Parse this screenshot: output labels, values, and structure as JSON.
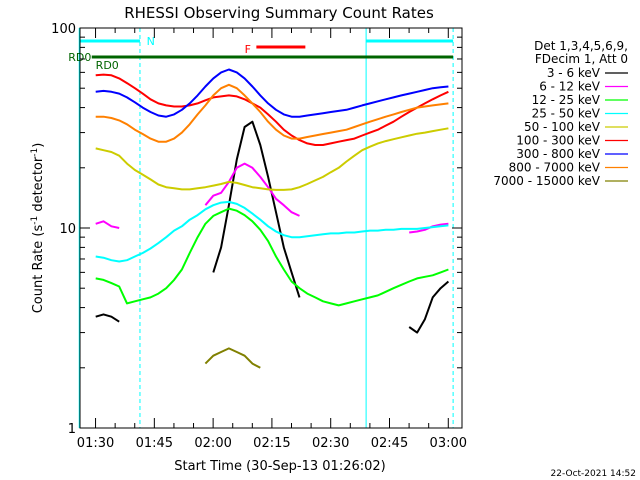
{
  "chart_data": {
    "type": "line",
    "title": "RHESSI Observing Summary Count Rates",
    "xlabel": "Start Time (30-Sep-13 01:26:02)",
    "ylabel": "Count Rate (s",
    "ylabel_sup": "-1",
    "ylabel_tail": " detector",
    "ylabel_sup2": "-1",
    "ylabel_end": ")",
    "y_scale": "log",
    "xlim": [
      "01:26:02",
      "03:03:30"
    ],
    "ylim": [
      1,
      100
    ],
    "x_ticks": [
      "01:30",
      "01:45",
      "02:00",
      "02:15",
      "02:30",
      "02:45",
      "03:00"
    ],
    "y_ticks": [
      "1",
      "10",
      "100"
    ],
    "legend_header": [
      "Det 1,3,4,5,6,9,",
      "FDecim 1, Att 0"
    ],
    "x_sample_minutes": [
      0,
      4,
      6,
      8,
      10,
      12,
      14,
      16,
      18,
      20,
      22,
      24,
      26,
      28,
      30,
      32,
      34,
      36,
      38,
      40,
      42,
      44,
      46,
      48,
      50,
      52,
      54,
      56,
      58,
      60,
      62,
      64,
      66,
      68,
      70,
      72,
      74,
      76,
      78,
      80,
      82,
      84,
      86,
      88,
      90,
      92,
      94
    ],
    "series": [
      {
        "name": "3 - 6 keV",
        "color": "#000000",
        "values": [
          null,
          3.6,
          3.7,
          3.6,
          3.4,
          null,
          null,
          null,
          null,
          null,
          null,
          null,
          null,
          null,
          null,
          null,
          6,
          8,
          13,
          22,
          32,
          34,
          26,
          18,
          12,
          8,
          6,
          4.5,
          null,
          null,
          null,
          null,
          null,
          null,
          null,
          null,
          null,
          null,
          null,
          null,
          null,
          3.2,
          3.0,
          3.5,
          4.5,
          5.0,
          5.4
        ]
      },
      {
        "name": "6 - 12 keV",
        "color": "#ff00ff",
        "values": [
          null,
          10.5,
          10.8,
          10.2,
          10,
          null,
          null,
          null,
          null,
          null,
          null,
          null,
          null,
          null,
          null,
          13,
          14.5,
          15,
          17,
          20,
          21,
          20,
          18,
          16,
          14,
          13,
          12,
          11.5,
          null,
          null,
          null,
          null,
          null,
          null,
          null,
          null,
          null,
          null,
          null,
          null,
          null,
          9.5,
          9.6,
          9.8,
          10.2,
          10.4,
          10.5
        ]
      },
      {
        "name": "12 - 25 keV",
        "color": "#00ff00",
        "values": [
          null,
          5.6,
          5.5,
          5.3,
          5.1,
          4.2,
          4.3,
          4.4,
          4.5,
          4.7,
          5,
          5.5,
          6.2,
          7.5,
          9,
          10.5,
          11.5,
          12,
          12.5,
          12.2,
          11.6,
          10.8,
          9.8,
          8.6,
          7.2,
          6.2,
          5.4,
          5.0,
          4.7,
          4.5,
          4.3,
          4.2,
          4.1,
          4.2,
          4.3,
          4.4,
          4.5,
          4.6,
          4.8,
          5.0,
          5.2,
          5.4,
          5.6,
          5.7,
          5.8,
          6.0,
          6.2
        ]
      },
      {
        "name": "25 - 50 keV",
        "color": "#00ffff",
        "values": [
          null,
          7.2,
          7.1,
          6.9,
          6.8,
          6.9,
          7.2,
          7.5,
          7.9,
          8.4,
          9,
          9.7,
          10.2,
          11,
          11.6,
          12.4,
          13,
          13.4,
          13.5,
          13.2,
          12.6,
          11.8,
          11,
          10.2,
          9.6,
          9.2,
          9.0,
          9.0,
          9.1,
          9.2,
          9.3,
          9.4,
          9.4,
          9.5,
          9.5,
          9.6,
          9.7,
          9.7,
          9.8,
          9.8,
          9.9,
          9.9,
          9.9,
          10,
          10.1,
          10.2,
          10.3
        ]
      },
      {
        "name": "50 - 100 keV",
        "color": "#cccc00",
        "values": [
          null,
          25,
          24.5,
          24,
          23,
          21,
          19.5,
          18.5,
          17.5,
          16.5,
          16,
          15.8,
          15.6,
          15.6,
          15.8,
          16,
          16.3,
          16.6,
          17,
          16.8,
          16.4,
          16,
          15.8,
          15.6,
          15.5,
          15.5,
          15.6,
          16,
          16.6,
          17.3,
          18,
          19,
          20,
          21.5,
          23,
          24.5,
          25.5,
          26.5,
          27.2,
          27.8,
          28.4,
          29,
          29.6,
          30,
          30.5,
          31,
          31.5
        ]
      },
      {
        "name": "100 - 300 keV",
        "color": "#ff0000",
        "values": [
          null,
          58,
          58.5,
          58,
          56,
          53,
          50,
          47,
          44,
          42,
          41,
          40.5,
          40.5,
          41,
          42,
          43.5,
          45,
          45.5,
          46,
          45.5,
          44,
          42,
          40,
          37,
          34,
          31,
          29,
          27.5,
          26.5,
          26,
          26,
          26.5,
          27,
          27.5,
          28,
          29,
          30,
          31,
          32.5,
          34,
          36,
          38,
          40,
          42,
          44,
          46,
          48
        ]
      },
      {
        "name": "300 - 800 keV",
        "color": "#0000ff",
        "values": [
          null,
          48,
          48.5,
          48,
          47,
          45,
          42.5,
          40,
          38,
          36.5,
          36,
          37,
          39,
          42,
          46,
          51,
          56,
          60,
          62,
          60,
          56,
          51,
          46,
          42,
          39,
          37,
          36,
          36,
          36.5,
          37,
          37.5,
          38,
          38.5,
          39,
          40,
          41,
          42,
          43,
          44,
          45,
          46,
          47,
          48,
          49,
          50,
          50.5,
          51
        ]
      },
      {
        "name": "800 - 7000 keV",
        "color": "#ff8000",
        "values": [
          null,
          36,
          36,
          35.5,
          34.5,
          33,
          31,
          29.5,
          28,
          27,
          27,
          28,
          30,
          33,
          37,
          41,
          46,
          50,
          52,
          50,
          46,
          42,
          38,
          34,
          31,
          29,
          28,
          28,
          28.5,
          29,
          29.5,
          30,
          30.5,
          31,
          32,
          33,
          34,
          35,
          36,
          37,
          38,
          39,
          40,
          40.5,
          41,
          41.5,
          42
        ]
      },
      {
        "name": "7000 - 15000 keV",
        "color": "#808000",
        "values": [
          null,
          null,
          null,
          null,
          null,
          null,
          null,
          null,
          null,
          null,
          null,
          null,
          null,
          null,
          null,
          2.1,
          2.3,
          2.4,
          2.5,
          2.4,
          2.3,
          2.1,
          2.0,
          null,
          null,
          null,
          null,
          null,
          null,
          null,
          null,
          null,
          null,
          null,
          null,
          null,
          null,
          null,
          null,
          null,
          null,
          null,
          null,
          null,
          null,
          null,
          null
        ]
      }
    ],
    "annotations": [
      {
        "label": "N",
        "color": "#00ffff"
      },
      {
        "label": "F",
        "color": "#ff0000"
      },
      {
        "label": "RD0",
        "color": "#006400"
      },
      {
        "label": "RD0",
        "color": "#006400"
      }
    ],
    "footer": "22-Oct-2021 14:52"
  }
}
